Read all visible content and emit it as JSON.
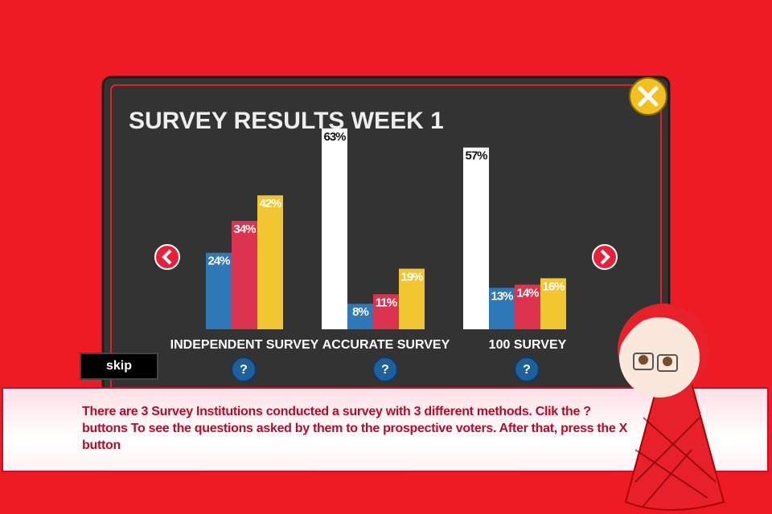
{
  "panel": {
    "title": "SURVEY RESULTS WEEK 1"
  },
  "chart_data": {
    "type": "bar",
    "categories": [
      "INDEPENDENT SURVEY",
      "ACCURATE SURVEY",
      "100 SURVEY"
    ],
    "series": [
      {
        "color": "#ffffff",
        "values": [
          null,
          63,
          57
        ],
        "value_labels": [
          null,
          "63%",
          "57%"
        ]
      },
      {
        "color": "#2f78b8",
        "values": [
          24,
          8,
          13
        ],
        "value_labels": [
          "24%",
          "8%",
          "13%"
        ]
      },
      {
        "color": "#dc3450",
        "values": [
          34,
          11,
          14
        ],
        "value_labels": [
          "34%",
          "11%",
          "14%"
        ]
      },
      {
        "color": "#f2c631",
        "values": [
          42,
          19,
          16
        ],
        "value_labels": [
          "42%",
          "19%",
          "16%"
        ]
      }
    ]
  },
  "buttons": {
    "skip": "skip",
    "help": [
      "?",
      "?",
      "?"
    ]
  },
  "dialog": {
    "text": "There are 3 Survey Institutions conducted a survey with 3 different methods. Clik the ? buttons To see the questions asked by them to the prospective voters. After that, press the X button"
  }
}
